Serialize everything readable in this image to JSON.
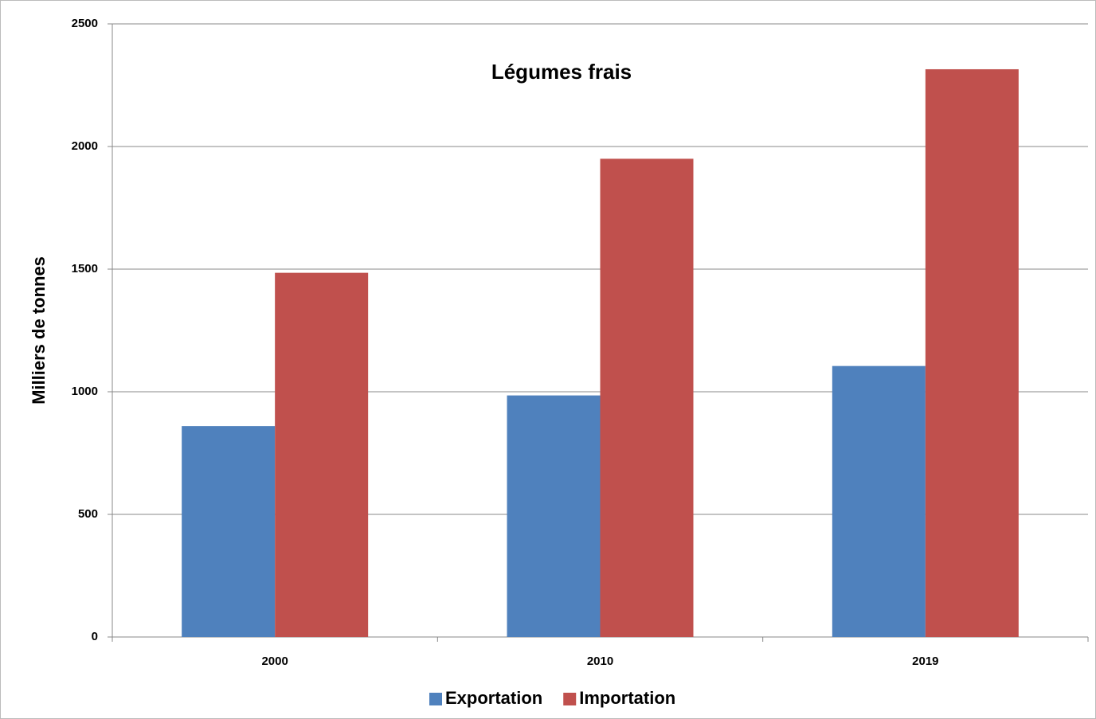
{
  "chart_data": {
    "type": "bar",
    "title": "Légumes frais",
    "y_label": "Milliers de tonnes",
    "categories": [
      "2000",
      "2010",
      "2019"
    ],
    "series": [
      {
        "name": "Exportation",
        "color": "#4f81bd",
        "values": [
          860,
          985,
          1105
        ]
      },
      {
        "name": "Importation",
        "color": "#c0504d",
        "values": [
          1485,
          1950,
          2315
        ]
      }
    ],
    "ylim": [
      0,
      2500
    ],
    "yticks": [
      0,
      500,
      1000,
      1500,
      2000,
      2500
    ],
    "grid": true,
    "legend": "bottom"
  }
}
